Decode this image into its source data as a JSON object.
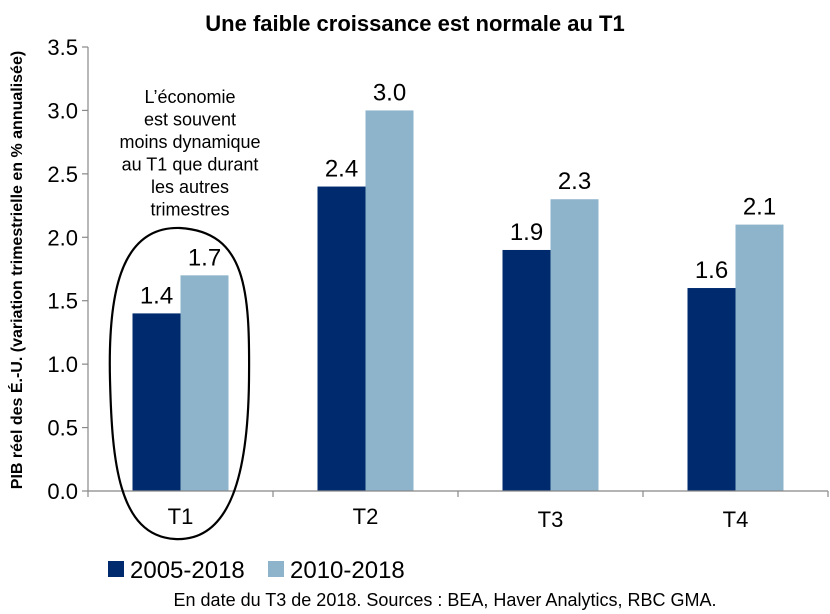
{
  "chart_data": {
    "type": "bar",
    "title": "Une faible croissance est normale au T1",
    "ylabel": "PIB réel des É.-U. (variation trimestrielle en % annualisée)",
    "xlabel": "",
    "categories": [
      "T1",
      "T2",
      "T3",
      "T4"
    ],
    "series": [
      {
        "name": "2005-2018",
        "values": [
          1.4,
          2.4,
          1.9,
          1.6
        ],
        "color": "#002A6E"
      },
      {
        "name": "2010-2018",
        "values": [
          1.7,
          3.0,
          2.3,
          2.1
        ],
        "color": "#8EB4CB"
      }
    ],
    "data_labels": [
      [
        "1.4",
        "2.4",
        "1.9",
        "1.6"
      ],
      [
        "1.7",
        "3.0",
        "2.3",
        "2.1"
      ]
    ],
    "ylim": [
      0,
      3.5
    ],
    "yticks": [
      "0.0",
      "0.5",
      "1.0",
      "1.5",
      "2.0",
      "2.5",
      "3.0",
      "3.5"
    ],
    "grid": false,
    "legend_position": "bottom-left",
    "annotation": {
      "lines": [
        "L’économie",
        "est souvent",
        "moins  dynamique",
        "au T1 que durant",
        "les autres",
        "trimestres"
      ],
      "highlight": "T1"
    },
    "source": "En date du T3 de 2018. Sources : BEA, Haver Analytics, RBC GMA."
  }
}
